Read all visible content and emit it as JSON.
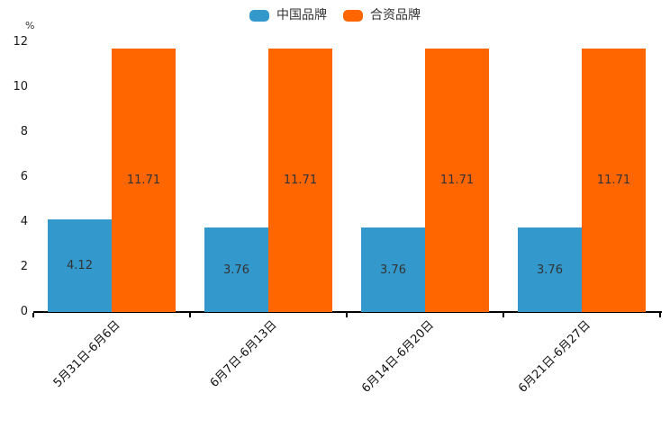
{
  "page": {
    "background": "#ffffff",
    "axis_color": "#000000",
    "text_color": "#333333"
  },
  "chart_data": {
    "type": "bar",
    "title": "",
    "unit_label": "%",
    "categories": [
      "5月31日-6月6日",
      "6月7日-6月13日",
      "6月14日-6月20日",
      "6月21日-6月27日"
    ],
    "series": [
      {
        "name": "中国品牌",
        "color": "#3398CB",
        "values": [
          4.12,
          3.76,
          3.76,
          3.76
        ]
      },
      {
        "name": "合资品牌",
        "color": "#FF6600",
        "values": [
          11.71,
          11.71,
          11.71,
          11.71
        ]
      }
    ],
    "ylim": [
      0,
      12
    ],
    "yticks": [
      0,
      2,
      4,
      6,
      8,
      10,
      12
    ],
    "grid": false,
    "legend_position": "top-center",
    "value_labels": "inside-center",
    "value_label_color": "#333333",
    "x_label_rotation_deg": 45
  }
}
